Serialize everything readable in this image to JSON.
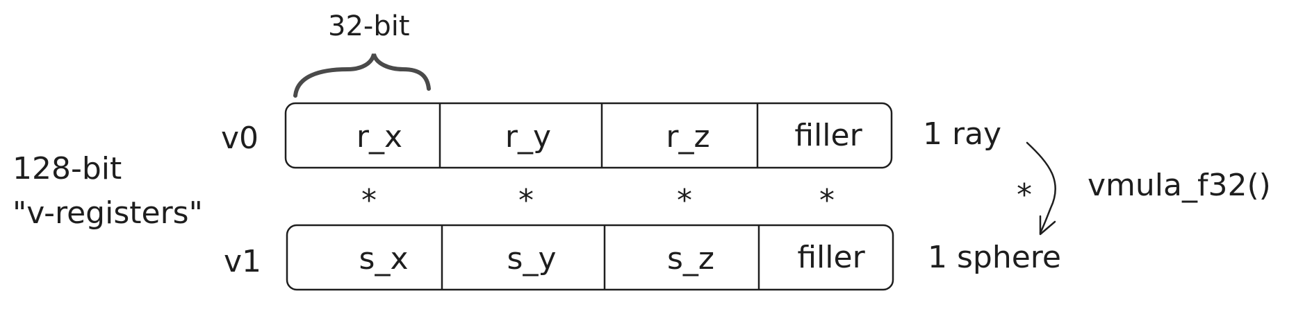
{
  "bit_width_label": "32-bit",
  "register_type_label": {
    "line1": "128-bit",
    "line2": "\"v-registers\""
  },
  "registers": [
    {
      "name": "v0",
      "lanes": [
        "r_x",
        "r_y",
        "r_z",
        "filler"
      ],
      "note": "1 ray"
    },
    {
      "name": "v1",
      "lanes": [
        "s_x",
        "s_y",
        "s_z",
        "filler"
      ],
      "note": "1 sphere"
    }
  ],
  "operator": "*",
  "instruction": "vmula_f32()",
  "colors": {
    "stroke": "#1e1e1e",
    "brace": "#4a4a4a",
    "background": "#ffffff"
  }
}
